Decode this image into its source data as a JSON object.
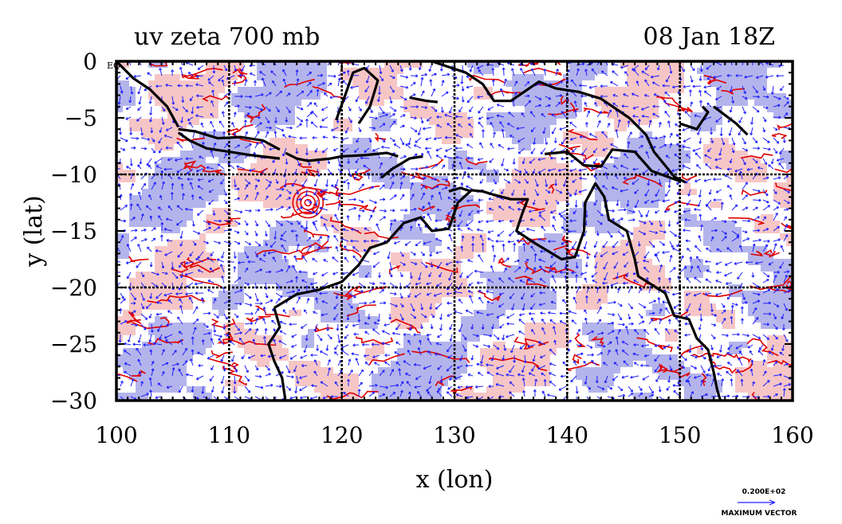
{
  "chart_data": {
    "type": "contour-vector-map",
    "title_left": "uv zeta 700 mb",
    "title_right": "08 Jan 18Z",
    "xlabel": "x (lon)",
    "ylabel": "y (lat)",
    "xlim": [
      100,
      160
    ],
    "ylim": [
      -30,
      0
    ],
    "x_ticks": [
      100,
      110,
      120,
      130,
      140,
      150,
      160
    ],
    "y_ticks": [
      0,
      -5,
      -10,
      -15,
      -20,
      -25,
      -30
    ],
    "x_tick_labels": [
      "100",
      "110",
      "120",
      "130",
      "140",
      "150",
      "160"
    ],
    "y_tick_labels": [
      "0",
      "−5",
      "−10",
      "−15",
      "−20",
      "−25",
      "−30"
    ],
    "gridlines_lon": [
      110,
      120,
      130,
      140,
      150
    ],
    "gridlines_lat": [
      -10,
      -20
    ],
    "corner_label": "EQ",
    "vector_legend": {
      "value": "0.200E+02",
      "label": "MAXIMUM VECTOR"
    },
    "colors": {
      "positive_fill": "#f6c6c6",
      "positive_contour": "#e00000",
      "negative_fill": "#b4b4ec",
      "negative_contour": "#1010ff",
      "coastline": "#000000",
      "vectors": "#2020ff"
    }
  }
}
